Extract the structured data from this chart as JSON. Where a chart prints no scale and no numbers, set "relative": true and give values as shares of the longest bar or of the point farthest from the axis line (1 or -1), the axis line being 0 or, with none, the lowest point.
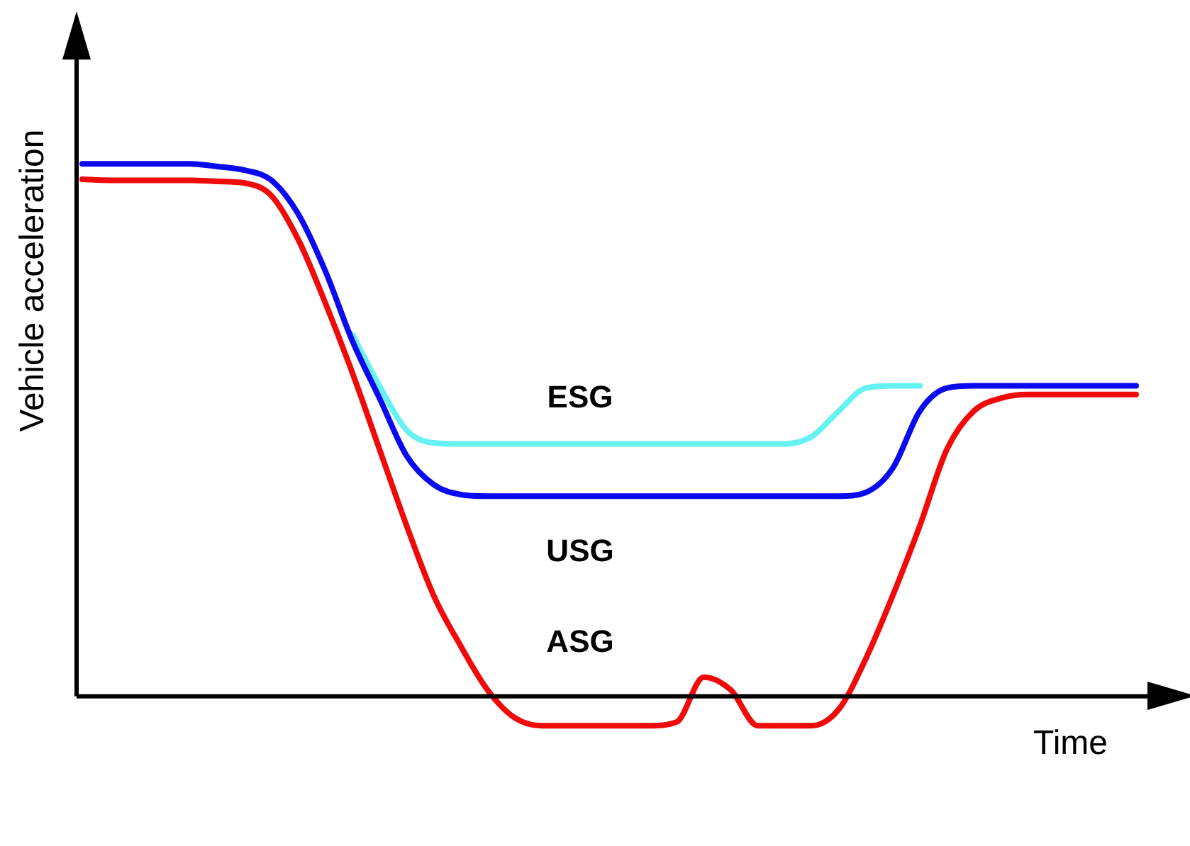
{
  "chart_data": {
    "type": "line",
    "relative": true,
    "xlabel": "Time",
    "ylabel": "Vehicle acceleration",
    "legend": false,
    "grid": false,
    "marker": "none",
    "line_style": "solid",
    "categories": [
      null,
      null,
      null,
      null,
      null,
      null,
      null,
      null,
      null,
      null,
      null,
      null,
      null,
      null,
      null,
      null,
      null,
      null,
      null,
      null,
      null,
      null,
      null,
      null,
      null,
      null,
      null,
      null,
      null,
      null,
      null,
      null,
      null,
      null,
      null,
      null,
      null,
      null,
      null,
      null
    ],
    "series": [
      {
        "name": "ESG",
        "color": "#66f2f2",
        "values": [
          null,
          null,
          null,
          null,
          null,
          null,
          null,
          null,
          null,
          null,
          0.679,
          0.583,
          0.5,
          0.476,
          0.474,
          0.474,
          0.474,
          0.474,
          0.474,
          0.474,
          0.474,
          0.474,
          0.474,
          0.474,
          0.474,
          0.474,
          0.474,
          0.488,
          0.536,
          0.579,
          0.583,
          0.583,
          null,
          null,
          null,
          null,
          null,
          null,
          null,
          null
        ]
      },
      {
        "name": "USG",
        "color": "#0a0af0",
        "values": [
          1,
          1,
          1,
          1,
          1,
          0.995,
          0.988,
          0.969,
          0.905,
          0.798,
          0.667,
          0.56,
          0.452,
          0.398,
          0.379,
          0.376,
          0.376,
          0.376,
          0.376,
          0.376,
          0.376,
          0.376,
          0.376,
          0.376,
          0.376,
          0.376,
          0.376,
          0.376,
          0.376,
          0.383,
          0.429,
          0.536,
          0.579,
          0.583,
          0.583,
          0.583,
          0.583,
          0.583,
          0.583,
          0.583
        ]
      },
      {
        "name": "ASG",
        "color": "#f00a0a",
        "values": [
          0.971,
          0.969,
          0.969,
          0.969,
          0.969,
          0.967,
          0.964,
          0.94,
          0.857,
          0.738,
          0.607,
          0.464,
          0.321,
          0.19,
          0.095,
          0.012,
          -0.04,
          -0.055,
          -0.055,
          -0.055,
          -0.055,
          -0.055,
          -0.048,
          0.036,
          0.012,
          -0.055,
          -0.055,
          -0.055,
          -0.024,
          0.071,
          0.19,
          0.321,
          0.464,
          0.536,
          0.56,
          0.567,
          0.567,
          0.567,
          0.567,
          0.567
        ]
      }
    ]
  }
}
